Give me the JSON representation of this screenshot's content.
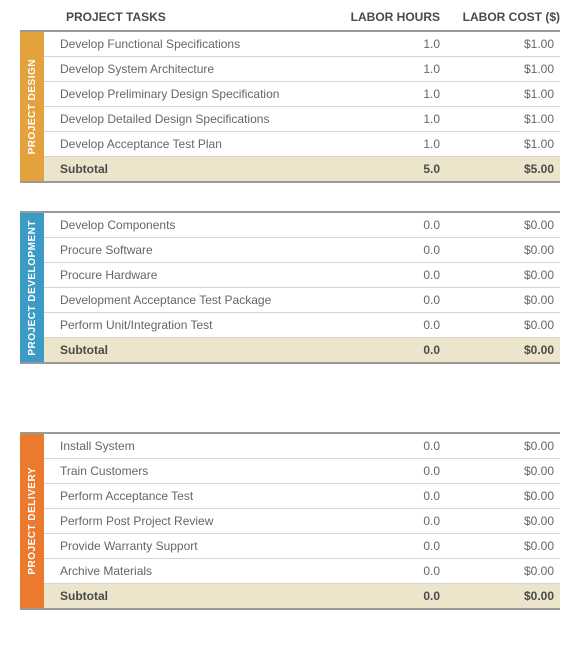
{
  "headers": {
    "tasks": "PROJECT TASKS",
    "hours": "LABOR HOURS",
    "cost": "LABOR COST ($)"
  },
  "subtotal_label": "Subtotal",
  "sections": [
    {
      "title": "PROJECT DESIGN",
      "tab_color": "#e3a23d",
      "rows": [
        {
          "task": "Develop Functional Specifications",
          "hours": "1.0",
          "cost": "$1.00"
        },
        {
          "task": "Develop System Architecture",
          "hours": "1.0",
          "cost": "$1.00"
        },
        {
          "task": "Develop Preliminary Design Specification",
          "hours": "1.0",
          "cost": "$1.00"
        },
        {
          "task": "Develop Detailed Design Specifications",
          "hours": "1.0",
          "cost": "$1.00"
        },
        {
          "task": "Develop Acceptance Test Plan",
          "hours": "1.0",
          "cost": "$1.00"
        }
      ],
      "subtotal": {
        "hours": "5.0",
        "cost": "$5.00"
      }
    },
    {
      "title": "PROJECT DEVELOPMENT",
      "tab_color": "#3b9bc4",
      "rows": [
        {
          "task": "Develop Components",
          "hours": "0.0",
          "cost": "$0.00"
        },
        {
          "task": "Procure Software",
          "hours": "0.0",
          "cost": "$0.00"
        },
        {
          "task": "Procure Hardware",
          "hours": "0.0",
          "cost": "$0.00"
        },
        {
          "task": "Development Acceptance Test Package",
          "hours": "0.0",
          "cost": "$0.00"
        },
        {
          "task": "Perform Unit/Integration Test",
          "hours": "0.0",
          "cost": "$0.00"
        }
      ],
      "subtotal": {
        "hours": "0.0",
        "cost": "$0.00"
      }
    },
    {
      "title": "PROJECT DELIVERY",
      "tab_color": "#ec7a2e",
      "rows": [
        {
          "task": "Install System",
          "hours": "0.0",
          "cost": "$0.00"
        },
        {
          "task": "Train Customers",
          "hours": "0.0",
          "cost": "$0.00"
        },
        {
          "task": "Perform Acceptance Test",
          "hours": "0.0",
          "cost": "$0.00"
        },
        {
          "task": "Perform Post Project Review",
          "hours": "0.0",
          "cost": "$0.00"
        },
        {
          "task": "Provide Warranty Support",
          "hours": "0.0",
          "cost": "$0.00"
        },
        {
          "task": "Archive Materials",
          "hours": "0.0",
          "cost": "$0.00"
        }
      ],
      "subtotal": {
        "hours": "0.0",
        "cost": "$0.00"
      }
    }
  ]
}
